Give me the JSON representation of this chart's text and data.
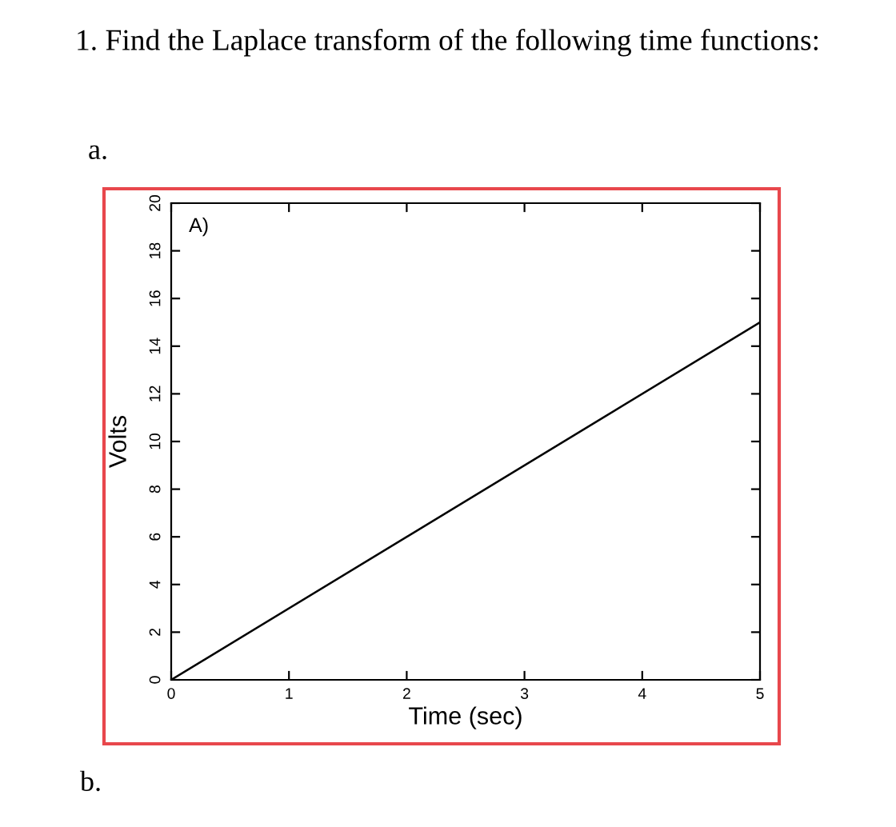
{
  "chart_data": {
    "type": "line",
    "title": "1. Find the Laplace transform of the following time functions:",
    "xlabel": "Time (sec)",
    "ylabel": "Volts",
    "annotations": [
      "a.",
      "A)",
      "b."
    ],
    "x": [
      0,
      5
    ],
    "series": [
      {
        "color": "#000000",
        "values": [
          0,
          15
        ]
      }
    ],
    "xlim": [
      0,
      5
    ],
    "ylim": [
      0,
      20
    ],
    "xticks": [
      0,
      1,
      2,
      3,
      4,
      5
    ],
    "yticks": [
      0,
      2,
      4,
      6,
      8,
      10,
      12,
      14,
      16,
      18,
      20
    ],
    "grid": false,
    "legend": false,
    "marker": "none",
    "line_style": "solid"
  }
}
